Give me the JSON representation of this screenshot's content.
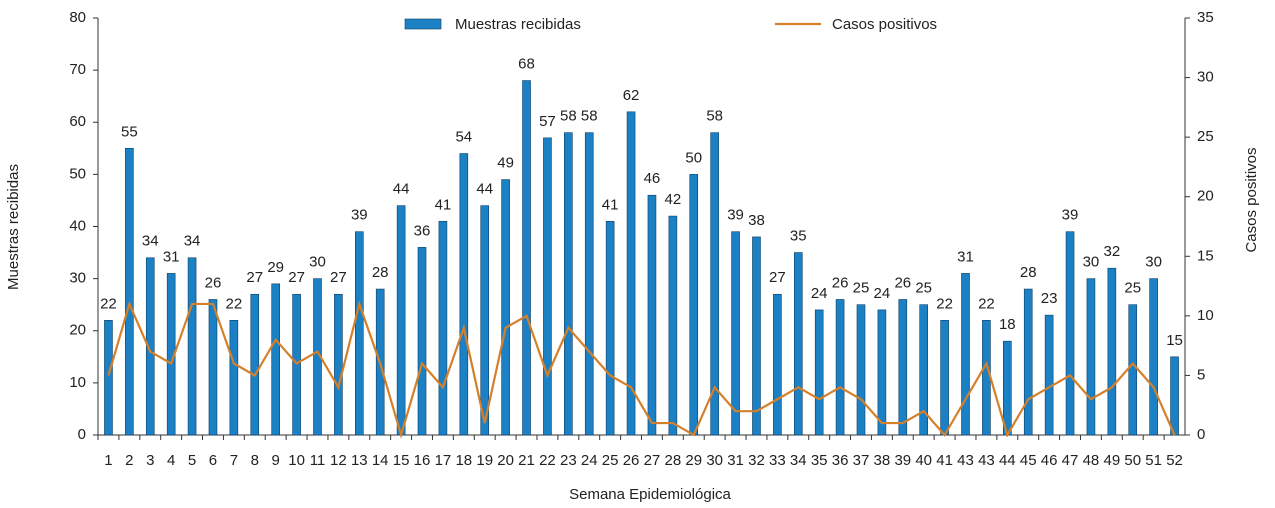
{
  "chart_data": {
    "type": "bar_line",
    "xlabel": "Semana Epidemiológica",
    "ylabel": "Muestras recibidas",
    "y2label": "Casos positivos",
    "categories": [
      "1",
      "2",
      "3",
      "4",
      "5",
      "6",
      "7",
      "8",
      "9",
      "10",
      "11",
      "12",
      "13",
      "14",
      "15",
      "16",
      "17",
      "18",
      "19",
      "20",
      "21",
      "22",
      "23",
      "24",
      "25",
      "26",
      "27",
      "28",
      "29",
      "30",
      "31",
      "32",
      "33",
      "34",
      "35",
      "36",
      "37",
      "38",
      "39",
      "40",
      "41",
      "43",
      "43",
      "44",
      "45",
      "46",
      "47",
      "48",
      "49",
      "50",
      "51",
      "52"
    ],
    "series": [
      {
        "name": "Muestras recibidas",
        "type": "bar",
        "color": "#1b80c4",
        "values": [
          22,
          55,
          34,
          31,
          34,
          26,
          22,
          27,
          29,
          27,
          30,
          27,
          39,
          28,
          44,
          36,
          41,
          54,
          44,
          49,
          68,
          57,
          58,
          58,
          41,
          62,
          46,
          42,
          50,
          58,
          39,
          38,
          27,
          35,
          24,
          26,
          25,
          24,
          26,
          25,
          22,
          31,
          22,
          18,
          28,
          23,
          39,
          30,
          32,
          25,
          30,
          15
        ]
      },
      {
        "name": "Casos positivos",
        "type": "line",
        "axis": "y2",
        "color": "#d4802a",
        "values": [
          5,
          11,
          7,
          6,
          11,
          11,
          6,
          5,
          8,
          6,
          7,
          4,
          11,
          6,
          0,
          6,
          4,
          9,
          1,
          9,
          10,
          5,
          9,
          7,
          5,
          4,
          1,
          1,
          0,
          4,
          2,
          2,
          3,
          4,
          3,
          4,
          3,
          1,
          1,
          2,
          0,
          3,
          6,
          0,
          3,
          4,
          5,
          3,
          4,
          6,
          4,
          0
        ]
      }
    ],
    "ylim": [
      0,
      80
    ],
    "yticks": [
      0,
      10,
      20,
      30,
      40,
      50,
      60,
      70,
      80
    ],
    "y2lim": [
      0,
      35
    ],
    "y2ticks": [
      0,
      5,
      10,
      15,
      20,
      25,
      30,
      35
    ],
    "legend": "top"
  }
}
